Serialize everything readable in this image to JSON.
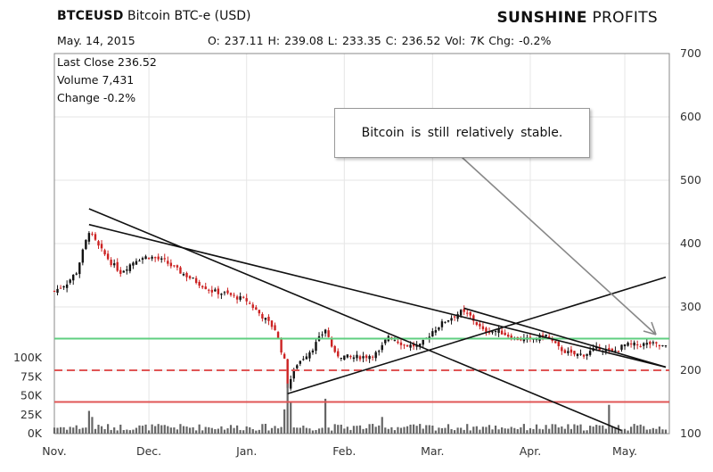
{
  "header": {
    "symbol": "BTCEUSD",
    "name": "Bitcoin BTC-e (USD)",
    "brand_bold": "SUNSHINE",
    "brand_light": "PROFITS",
    "date": "May. 14, 2015",
    "ohlc": "O: 237.11  H: 239.08  L: 233.35  C: 236.52  Vol: 7K  Chg: -0.2%"
  },
  "info": {
    "last_close": "Last Close 236.52",
    "volume": "Volume 7,431",
    "change": "Change -0.2%"
  },
  "annotation": "Bitcoin is still relatively stable.",
  "chart_data": {
    "type": "candlestick",
    "y_ticks": [
      "700",
      "600",
      "500",
      "400",
      "300",
      "200",
      "100"
    ],
    "ylim": [
      100,
      700
    ],
    "volume_ticks": [
      "100K",
      "75K",
      "50K",
      "25K",
      "0K"
    ],
    "volume_lim": [
      0,
      100
    ],
    "x_ticks": [
      "Nov.",
      "Dec.",
      "Jan.",
      "Feb.",
      "Mar.",
      "Apr.",
      "May."
    ],
    "xlim": [
      "2014-11-01",
      "2015-05-14"
    ],
    "ohlc_last": {
      "open": 237.11,
      "high": 239.08,
      "low": 233.35,
      "close": 236.52
    },
    "close_series": [
      {
        "date": "2014-11-01",
        "close": 325
      },
      {
        "date": "2014-11-05",
        "close": 338
      },
      {
        "date": "2014-11-08",
        "close": 355
      },
      {
        "date": "2014-11-12",
        "close": 420
      },
      {
        "date": "2014-11-15",
        "close": 395
      },
      {
        "date": "2014-11-19",
        "close": 370
      },
      {
        "date": "2014-11-22",
        "close": 355
      },
      {
        "date": "2014-11-27",
        "close": 375
      },
      {
        "date": "2014-12-01",
        "close": 380
      },
      {
        "date": "2014-12-06",
        "close": 372
      },
      {
        "date": "2014-12-11",
        "close": 355
      },
      {
        "date": "2014-12-16",
        "close": 340
      },
      {
        "date": "2014-12-21",
        "close": 325
      },
      {
        "date": "2014-12-26",
        "close": 320
      },
      {
        "date": "2015-01-01",
        "close": 310
      },
      {
        "date": "2015-01-06",
        "close": 285
      },
      {
        "date": "2015-01-10",
        "close": 265
      },
      {
        "date": "2015-01-13",
        "close": 215
      },
      {
        "date": "2015-01-14",
        "close": 175
      },
      {
        "date": "2015-01-17",
        "close": 210
      },
      {
        "date": "2015-01-22",
        "close": 235
      },
      {
        "date": "2015-01-26",
        "close": 265
      },
      {
        "date": "2015-01-29",
        "close": 225
      },
      {
        "date": "2015-02-03",
        "close": 220
      },
      {
        "date": "2015-02-08",
        "close": 222
      },
      {
        "date": "2015-02-12",
        "close": 228
      },
      {
        "date": "2015-02-15",
        "close": 255
      },
      {
        "date": "2015-02-20",
        "close": 240
      },
      {
        "date": "2015-02-25",
        "close": 238
      },
      {
        "date": "2015-03-01",
        "close": 262
      },
      {
        "date": "2015-03-05",
        "close": 278
      },
      {
        "date": "2015-03-10",
        "close": 292
      },
      {
        "date": "2015-03-13",
        "close": 285
      },
      {
        "date": "2015-03-17",
        "close": 262
      },
      {
        "date": "2015-03-22",
        "close": 262
      },
      {
        "date": "2015-03-27",
        "close": 250
      },
      {
        "date": "2015-04-01",
        "close": 248
      },
      {
        "date": "2015-04-06",
        "close": 255
      },
      {
        "date": "2015-04-10",
        "close": 235
      },
      {
        "date": "2015-04-14",
        "close": 225
      },
      {
        "date": "2015-04-18",
        "close": 225
      },
      {
        "date": "2015-04-23",
        "close": 236
      },
      {
        "date": "2015-04-27",
        "close": 228
      },
      {
        "date": "2015-05-01",
        "close": 240
      },
      {
        "date": "2015-05-05",
        "close": 240
      },
      {
        "date": "2015-05-09",
        "close": 242
      },
      {
        "date": "2015-05-14",
        "close": 236.52
      }
    ],
    "horizontal_lines": [
      {
        "value": 250,
        "color": "#5fcf80",
        "style": "solid"
      },
      {
        "value": 200,
        "color": "#e05555",
        "style": "dashed"
      },
      {
        "value": 150,
        "color": "#e05555",
        "style": "solid"
      }
    ],
    "trend_lines": [
      {
        "from": {
          "date": "2014-11-12",
          "value": 455
        },
        "to": {
          "date": "2015-04-30",
          "value": 105
        }
      },
      {
        "from": {
          "date": "2014-11-12",
          "value": 430
        },
        "to": {
          "date": "2015-05-14",
          "value": 205
        }
      },
      {
        "from": {
          "date": "2015-01-14",
          "value": 163
        },
        "to": {
          "date": "2015-05-14",
          "value": 347
        }
      },
      {
        "from": {
          "date": "2015-03-11",
          "value": 298
        },
        "to": {
          "date": "2015-05-14",
          "value": 205
        }
      }
    ],
    "colors": {
      "up": "#111111",
      "down": "#cc2222",
      "volume": "#666666",
      "grid": "#e6e6e6"
    }
  }
}
